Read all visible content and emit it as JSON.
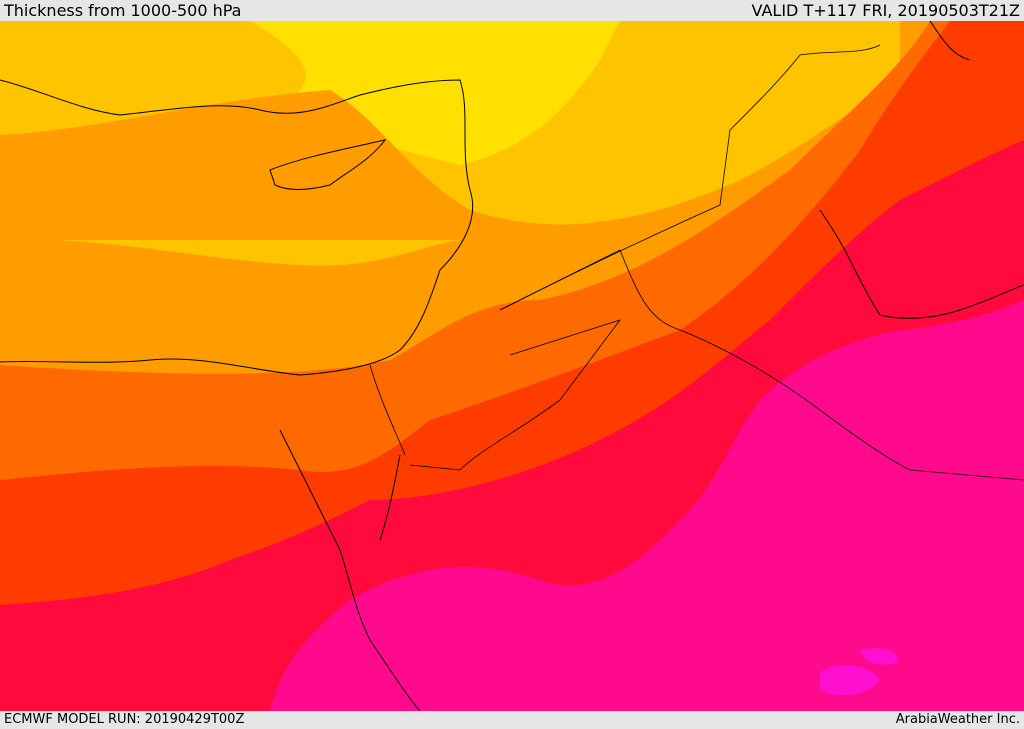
{
  "header": {
    "title": "Thickness from 1000-500 hPa",
    "valid": "VALID T+117 FRI, 20190503T21Z"
  },
  "footer": {
    "model_run": "ECMWF MODEL RUN: 20190429T00Z",
    "credit": "ArabiaWeather Inc."
  },
  "map": {
    "field": "thickness-1000-500hPa",
    "colors": {
      "level_1": "#ffe000",
      "level_2": "#ffc400",
      "level_3": "#ff9c00",
      "level_4": "#ff6a00",
      "level_5": "#ff3c00",
      "level_6": "#ff0a3c",
      "level_7": "#ff0a8c",
      "level_8": "#ff10d0",
      "coastline": "#000000"
    }
  }
}
